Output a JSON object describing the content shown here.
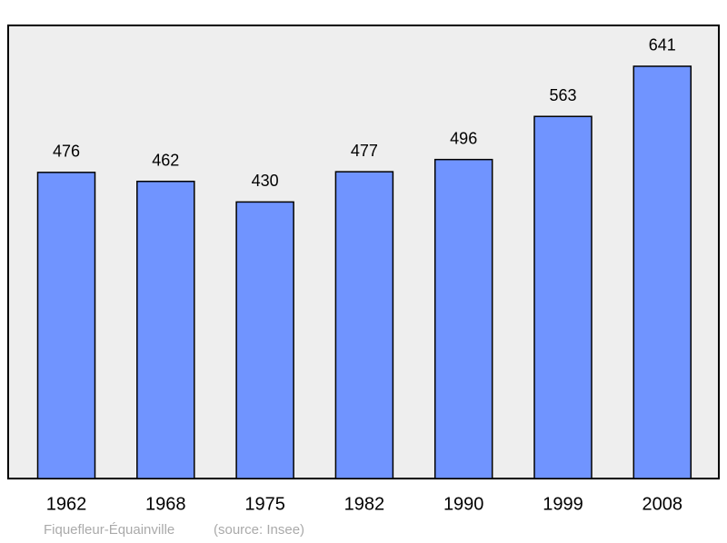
{
  "chart_data": {
    "type": "bar",
    "categories": [
      "1962",
      "1968",
      "1975",
      "1982",
      "1990",
      "1999",
      "2008"
    ],
    "values": [
      476,
      462,
      430,
      477,
      496,
      563,
      641
    ],
    "color": "#7094ff",
    "caption": "Fiquefleur-Équainville",
    "source": "(source: Insee)"
  }
}
